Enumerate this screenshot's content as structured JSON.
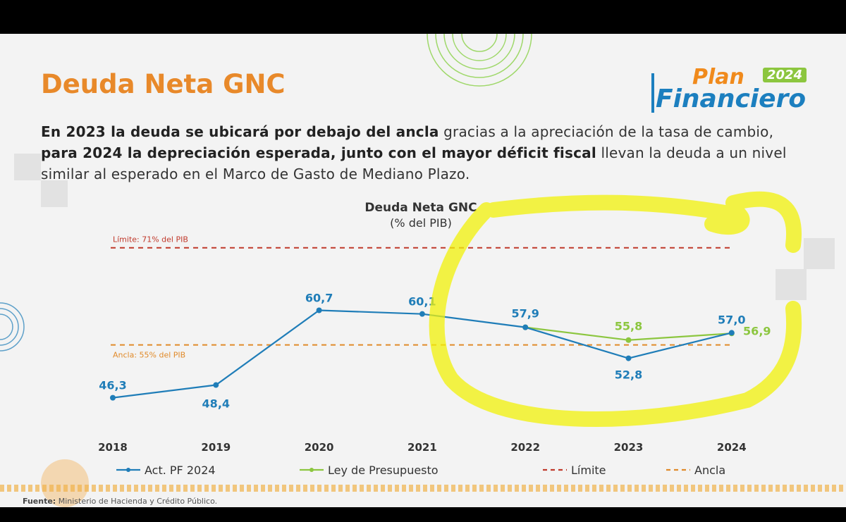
{
  "slide": {
    "title": "Deuda Neta GNC",
    "logo": {
      "line1": "Plan",
      "year": "2024",
      "line2": "Financiero"
    },
    "subtitle": {
      "p1": "En 2023 la deuda se ubicará por debajo del ancla",
      "p2": " gracias a la apreciación de la tasa de cambio, ",
      "p3": "para 2024 la depreciación esperada, junto con el mayor déficit fiscal",
      "p4": " llevan la deuda a un nivel similar al esperado en el Marco de Gasto de Mediano Plazo."
    },
    "footer": {
      "label": "Fuente:",
      "text": " Ministerio de Hacienda  y Crédito Público."
    }
  },
  "chart_data": {
    "type": "line",
    "title": "Deuda Neta GNC",
    "subtitle": "(% del PIB)",
    "categories": [
      "2018",
      "2019",
      "2020",
      "2021",
      "2022",
      "2023",
      "2024"
    ],
    "series": [
      {
        "name": "Act. PF 2024",
        "color": "#1f7db8",
        "values": [
          46.3,
          48.4,
          60.7,
          60.1,
          57.9,
          52.8,
          57.0
        ],
        "labels": [
          "46,3",
          "48,4",
          "60,7",
          "60,1",
          "57,9",
          "52,8",
          "57,0"
        ]
      },
      {
        "name": "Ley de Presupuesto",
        "color": "#8cc63f",
        "values": [
          null,
          null,
          null,
          null,
          57.9,
          55.8,
          56.9
        ],
        "labels": [
          "",
          "",
          "",
          "",
          "",
          "55,8",
          "56,9"
        ]
      }
    ],
    "reference_lines": [
      {
        "name": "Límite",
        "value": 71,
        "color": "#c0392b",
        "label": "Límite: 71% del PIB"
      },
      {
        "name": "Ancla",
        "value": 55,
        "color": "#e08a2a",
        "label": "Ancla: 55% del PIB"
      }
    ],
    "legend": [
      "Act. PF 2024",
      "Ley de Presupuesto",
      "Límite",
      "Ancla"
    ],
    "legend_position": "bottom",
    "grid": false
  }
}
